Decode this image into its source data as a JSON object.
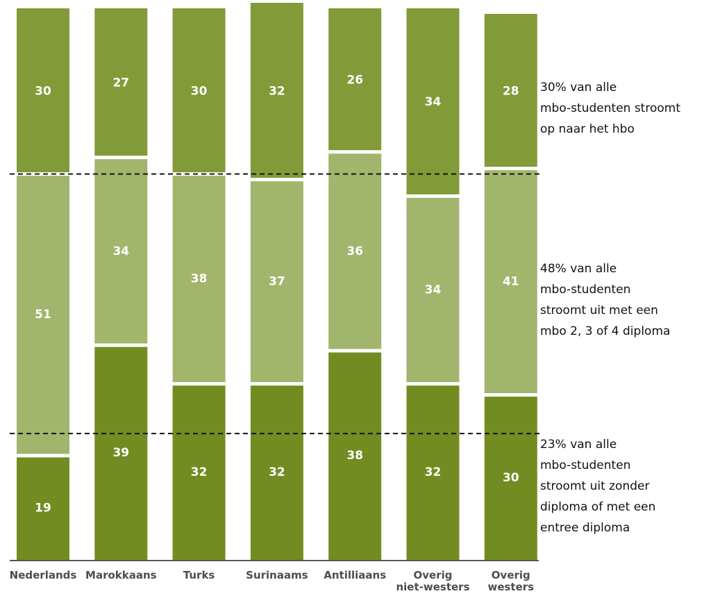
{
  "chart_data": {
    "type": "bar",
    "stacked": true,
    "categories": [
      "Nederlands",
      "Marokkaans",
      "Turks",
      "Surinaams",
      "Antilliaans",
      "Overig\nniet-westers",
      "Overig\nwesters"
    ],
    "series": [
      {
        "values": [
          19,
          39,
          32,
          32,
          38,
          32,
          30
        ],
        "color": "#738c22"
      },
      {
        "values": [
          51,
          34,
          38,
          37,
          36,
          34,
          41
        ],
        "color": "#a2b56d"
      },
      {
        "values": [
          30,
          27,
          30,
          32,
          26,
          34,
          28
        ],
        "color": "#829b38"
      }
    ],
    "ylim": [
      0,
      100
    ],
    "reference_lines": [
      23,
      70
    ],
    "annotations": [
      {
        "text": "30% van alle\nmbo-studenten stroomt\nop naar het hbo"
      },
      {
        "text": "48% van alle\nmbo-studenten\nstroomt uit met een\nmbo 2, 3 of 4 diploma"
      },
      {
        "text": "23% van alle\nmbo-studenten\nstroomt uit zonder\ndiploma of met een\nentree diploma"
      }
    ]
  }
}
